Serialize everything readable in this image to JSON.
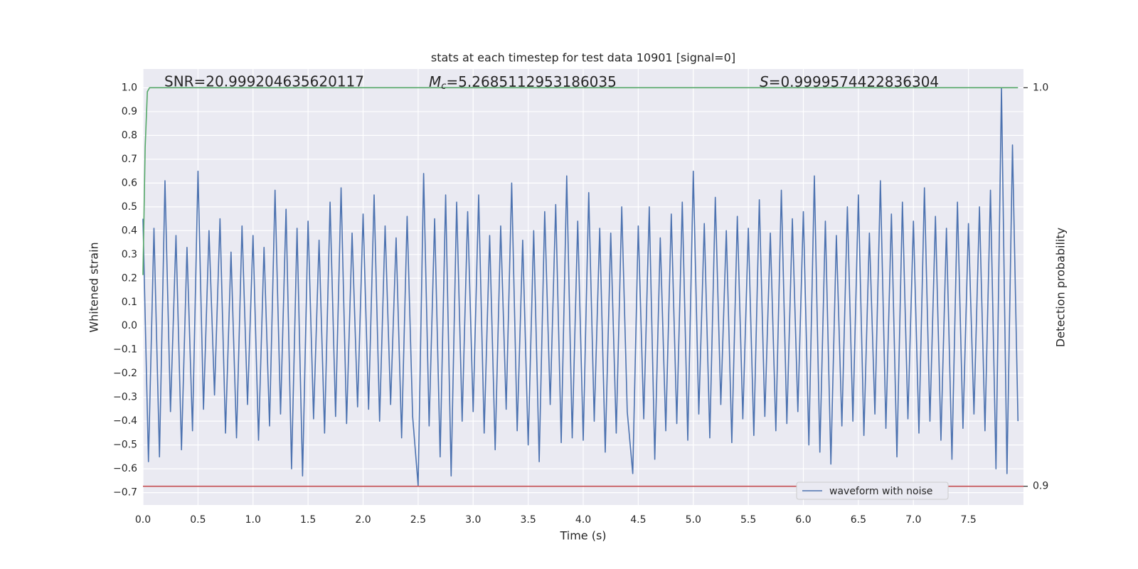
{
  "chart_data": {
    "type": "line",
    "title": "stats at each timestep for test data 10901 [signal=0]",
    "annotations": [
      {
        "text": "SNR=20.999204635620117"
      },
      {
        "symbol": "M",
        "subscript": "c",
        "text": "=5.2685112953186035"
      },
      {
        "symbol": "S",
        "text": "=0.9999574422836304"
      }
    ],
    "xlabel": "Time (s)",
    "ylabel": "Whitened strain",
    "y2label": "Detection probability",
    "xlim": [
      0,
      8.0
    ],
    "ylim": [
      -0.752,
      1.079
    ],
    "y2lim": [
      0.8953,
      1.0047
    ],
    "xticks": [
      {
        "value": 0,
        "label": "0.0"
      },
      0.5,
      {
        "value": 1,
        "label": "1.0"
      },
      1.5,
      {
        "value": 2,
        "label": "2.0"
      },
      2.5,
      {
        "value": 3,
        "label": "3.0"
      },
      3.5,
      {
        "value": 4,
        "label": "4.0"
      },
      4.5,
      {
        "value": 5,
        "label": "5.0"
      },
      5.5,
      {
        "value": 6,
        "label": "6.0"
      },
      6.5,
      {
        "value": 7,
        "label": "7.0"
      },
      7.5
    ],
    "yticks": [
      {
        "value": -0.7,
        "label": "−0.7"
      },
      {
        "value": -0.6,
        "label": "−0.6"
      },
      {
        "value": -0.5,
        "label": "−0.5"
      },
      {
        "value": -0.4,
        "label": "−0.4"
      },
      {
        "value": -0.3,
        "label": "−0.3"
      },
      {
        "value": -0.2,
        "label": "−0.2"
      },
      {
        "value": -0.1,
        "label": "−0.1"
      },
      {
        "value": 0,
        "label": "0.0"
      },
      0.1,
      0.2,
      0.3,
      0.4,
      0.5,
      0.6,
      0.7,
      0.8,
      0.9,
      {
        "value": 1,
        "label": "1.0"
      }
    ],
    "y2ticks": [
      0.9,
      {
        "value": 1,
        "label": "1.0"
      }
    ],
    "grid": true,
    "legend_loc": "lower right",
    "series": [
      {
        "name": "waveform with noise",
        "color": "#4c72b0",
        "x": [
          0,
          0.05,
          0.1,
          0.15,
          0.2,
          0.25,
          0.3,
          0.35,
          0.4,
          0.45,
          0.5,
          0.55,
          0.6,
          0.65,
          0.7,
          0.75,
          0.8,
          0.85,
          0.9,
          0.95,
          1,
          1.05,
          1.1,
          1.15,
          1.2,
          1.25,
          1.3,
          1.35,
          1.4,
          1.45,
          1.5,
          1.55,
          1.6,
          1.65,
          1.7,
          1.75,
          1.8,
          1.85,
          1.9,
          1.95,
          2,
          2.05,
          2.1,
          2.15,
          2.2,
          2.25,
          2.3,
          2.35,
          2.4,
          2.45,
          2.5,
          2.55,
          2.6,
          2.65,
          2.7,
          2.75,
          2.8,
          2.85,
          2.9,
          2.95,
          3,
          3.05,
          3.1,
          3.15,
          3.2,
          3.25,
          3.3,
          3.35,
          3.4,
          3.45,
          3.5,
          3.55,
          3.6,
          3.65,
          3.7,
          3.75,
          3.8,
          3.85,
          3.9,
          3.95,
          4,
          4.05,
          4.1,
          4.15,
          4.2,
          4.25,
          4.3,
          4.35,
          4.4,
          4.45,
          4.5,
          4.55,
          4.6,
          4.65,
          4.7,
          4.75,
          4.8,
          4.85,
          4.9,
          4.95,
          5,
          5.05,
          5.1,
          5.15,
          5.2,
          5.25,
          5.3,
          5.35,
          5.4,
          5.45,
          5.5,
          5.55,
          5.6,
          5.65,
          5.7,
          5.75,
          5.8,
          5.85,
          5.9,
          5.95,
          6,
          6.05,
          6.1,
          6.15,
          6.2,
          6.25,
          6.3,
          6.35,
          6.4,
          6.45,
          6.5,
          6.55,
          6.6,
          6.65,
          6.7,
          6.75,
          6.8,
          6.85,
          6.9,
          6.95,
          7,
          7.05,
          7.1,
          7.15,
          7.2,
          7.25,
          7.3,
          7.35,
          7.4,
          7.45,
          7.5,
          7.55,
          7.6,
          7.65,
          7.7,
          7.75,
          7.8,
          7.85,
          7.9,
          7.95
        ],
        "values": [
          0.45,
          -0.57,
          0.41,
          -0.55,
          0.61,
          -0.36,
          0.38,
          -0.52,
          0.33,
          -0.44,
          0.65,
          -0.35,
          0.4,
          -0.29,
          0.45,
          -0.45,
          0.31,
          -0.47,
          0.42,
          -0.33,
          0.38,
          -0.48,
          0.33,
          -0.42,
          0.57,
          -0.37,
          0.49,
          -0.6,
          0.41,
          -0.63,
          0.44,
          -0.39,
          0.36,
          -0.45,
          0.52,
          -0.38,
          0.58,
          -0.41,
          0.39,
          -0.34,
          0.47,
          -0.35,
          0.55,
          -0.4,
          0.42,
          -0.33,
          0.37,
          -0.47,
          0.46,
          -0.38,
          -0.67,
          0.64,
          -0.42,
          0.45,
          -0.55,
          0.55,
          -0.63,
          0.52,
          -0.4,
          0.48,
          -0.36,
          0.55,
          -0.45,
          0.38,
          -0.52,
          0.42,
          -0.35,
          0.6,
          -0.44,
          0.36,
          -0.5,
          0.4,
          -0.57,
          0.48,
          -0.33,
          0.51,
          -0.49,
          0.63,
          -0.47,
          0.44,
          -0.48,
          0.56,
          -0.4,
          0.41,
          -0.53,
          0.39,
          -0.45,
          0.5,
          -0.36,
          -0.62,
          0.42,
          -0.39,
          0.5,
          -0.56,
          0.37,
          -0.44,
          0.47,
          -0.41,
          0.52,
          -0.48,
          0.65,
          -0.37,
          0.43,
          -0.47,
          0.54,
          -0.33,
          0.4,
          -0.49,
          0.46,
          -0.39,
          0.41,
          -0.46,
          0.53,
          -0.38,
          0.39,
          -0.44,
          0.57,
          -0.41,
          0.45,
          -0.36,
          0.48,
          -0.5,
          0.63,
          -0.53,
          0.44,
          -0.58,
          0.38,
          -0.42,
          0.5,
          -0.4,
          0.55,
          -0.46,
          0.39,
          -0.37,
          0.61,
          -0.43,
          0.47,
          -0.55,
          0.52,
          -0.39,
          0.44,
          -0.45,
          0.58,
          -0.4,
          0.46,
          -0.48,
          0.41,
          -0.56,
          0.52,
          -0.43,
          0.43,
          -0.37,
          0.5,
          -0.44,
          0.57,
          -0.6,
          1.0,
          -0.62,
          0.76,
          -0.4
        ]
      },
      {
        "color": "#55a868",
        "axis": "y2",
        "x": [
          0,
          0.02,
          0.04,
          0.06,
          0.08,
          7.95
        ],
        "values": [
          0.953,
          0.985,
          0.999,
          1.0,
          1.0,
          1.0
        ]
      },
      {
        "color": "#c44e52",
        "axis": "y2",
        "x": [
          0,
          8.0
        ],
        "values": [
          0.9,
          0.9
        ]
      }
    ]
  }
}
